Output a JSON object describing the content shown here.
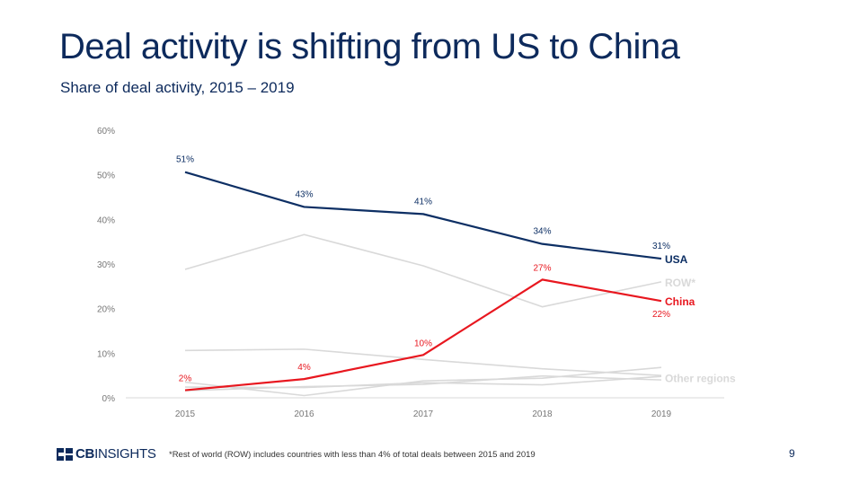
{
  "slide": {
    "title": "Deal activity is shifting from US to China",
    "subtitle": "Share of deal activity, 2015 – 2019",
    "footnote": "*Rest of world (ROW) includes countries with less than 4% of total deals between 2015 and 2019",
    "page_number": "9",
    "logo": {
      "bold": "CB",
      "light": "INSIGHTS"
    }
  },
  "chart_data": {
    "type": "line",
    "x": [
      "2015",
      "2016",
      "2017",
      "2018",
      "2019"
    ],
    "ylim": [
      0,
      60
    ],
    "yticks": [
      "0%",
      "10%",
      "20%",
      "30%",
      "40%",
      "50%",
      "60%"
    ],
    "grid": false,
    "colors": {
      "usa": "#0d2f64",
      "china": "#e8171f",
      "other": "#d9d9d9",
      "axis_text": "#777777"
    },
    "series": [
      {
        "key": "usa",
        "name": "USA",
        "values": [
          50.6,
          42.8,
          41.2,
          34.5,
          31.2
        ],
        "labels": [
          "51%",
          "43%",
          "41%",
          "34%",
          "31%"
        ],
        "color": "#0d2f64",
        "labelled": true
      },
      {
        "key": "china",
        "name": "China",
        "values": [
          1.7,
          4.2,
          9.6,
          26.5,
          21.7
        ],
        "labels": [
          "2%",
          "4%",
          "10%",
          "27%",
          "22%"
        ],
        "color": "#e8171f",
        "labelled": true
      },
      {
        "key": "row",
        "name": "ROW*",
        "values": [
          28.8,
          36.6,
          29.6,
          20.4,
          26.0
        ],
        "color": "#d9d9d9",
        "labelled": false
      },
      {
        "key": "other1",
        "values": [
          10.6,
          10.9,
          8.6,
          6.5,
          5.0
        ],
        "color": "#d9d9d9",
        "labelled": false
      },
      {
        "key": "other2",
        "values": [
          3.5,
          0.5,
          3.8,
          4.4,
          6.8
        ],
        "color": "#d9d9d9",
        "labelled": false
      },
      {
        "key": "other3",
        "values": [
          2.4,
          2.3,
          3.4,
          2.9,
          4.8
        ],
        "color": "#d9d9d9",
        "labelled": false
      },
      {
        "key": "other4",
        "values": [
          1.6,
          2.5,
          3.0,
          4.9,
          4.0
        ],
        "color": "#d9d9d9",
        "labelled": false
      }
    ],
    "end_labels": [
      {
        "text": "USA",
        "series": "usa",
        "color": "#0d2f64"
      },
      {
        "text": "ROW*",
        "series": "row",
        "color": "#d9d9d9"
      },
      {
        "text": "China",
        "series": "china",
        "color": "#e8171f"
      },
      {
        "text": "Other regions",
        "series": "other",
        "color": "#d9d9d9"
      }
    ]
  }
}
